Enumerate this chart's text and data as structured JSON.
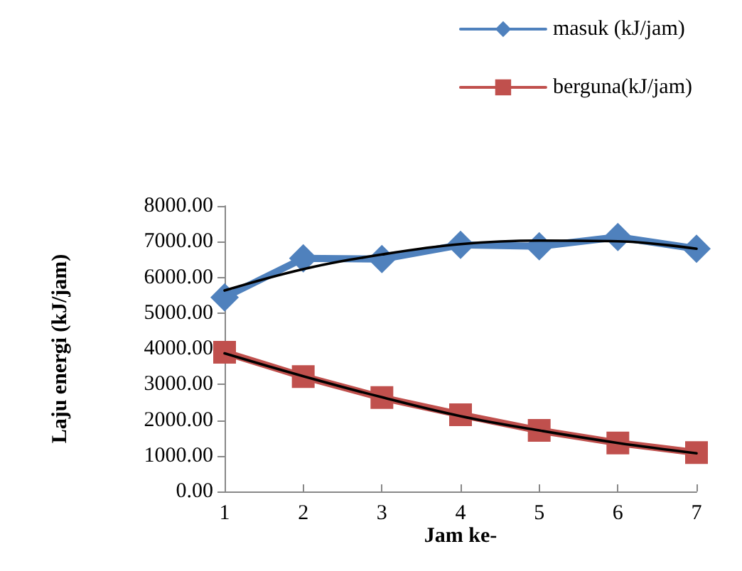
{
  "chart_data": {
    "type": "line",
    "xlabel": "Jam ke-",
    "ylabel": "Laju energi (kJ/jam)",
    "x": [
      1,
      2,
      3,
      4,
      5,
      6,
      7
    ],
    "series": [
      {
        "name": "masuk (kJ/jam)",
        "color": "#4f81bd",
        "marker": "diamond",
        "values": [
          5440,
          6530,
          6510,
          6910,
          6870,
          7130,
          6800
        ]
      },
      {
        "name": "berguna(kJ/jam)",
        "color": "#c0504d",
        "marker": "square",
        "values": [
          3900,
          3220,
          2630,
          2150,
          1710,
          1360,
          1090
        ]
      },
      {
        "type": "line",
        "color": "#000000",
        "marker": "none",
        "values": [
          5630,
          6230,
          6640,
          6930,
          7030,
          7010,
          6800
        ]
      },
      {
        "type": "line",
        "color": "#000000",
        "marker": "none",
        "values": [
          3870,
          3230,
          2640,
          2110,
          1710,
          1360,
          1070
        ]
      }
    ],
    "xlim": [
      1,
      7
    ],
    "xticks": [
      1,
      2,
      3,
      4,
      5,
      6,
      7
    ],
    "ylim": [
      0,
      8000
    ],
    "yticks": [
      {
        "value": 0,
        "label": "0.00"
      },
      {
        "value": 1000,
        "label": "1000.00"
      },
      {
        "value": 2000,
        "label": "2000.00"
      },
      {
        "value": 3000,
        "label": "3000.00"
      },
      {
        "value": 4000,
        "label": "4000.00"
      },
      {
        "value": 5000,
        "label": "5000.00"
      },
      {
        "value": 6000,
        "label": "6000.00"
      },
      {
        "value": 7000,
        "label": "7000.00"
      },
      {
        "value": 8000,
        "label": "8000.00"
      }
    ],
    "grid": false,
    "legend": "top right"
  }
}
